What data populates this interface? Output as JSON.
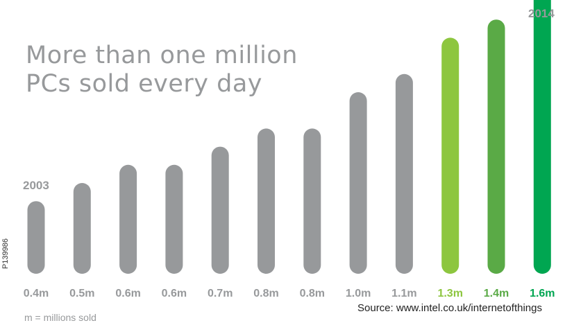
{
  "title_lines": [
    "More than one million",
    "PCs sold every day"
  ],
  "year_start": "2003",
  "year_end": "2014",
  "side_id": "P139986",
  "source": "Source: www.intel.co.uk/internetofthings",
  "note": "m = millions sold",
  "colors": {
    "gray": "#97999b",
    "light_green": "#8dc63f",
    "mid_green": "#5aaa46",
    "dark_green": "#00a651"
  },
  "chart_data": {
    "type": "bar",
    "unit": "m",
    "categories": [
      "0.4m",
      "0.5m",
      "0.6m",
      "0.6m",
      "0.7m",
      "0.8m",
      "0.8m",
      "1.0m",
      "1.1m",
      "1.3m",
      "1.4m",
      "1.6m"
    ],
    "values": [
      0.4,
      0.5,
      0.6,
      0.6,
      0.7,
      0.8,
      0.8,
      1.0,
      1.1,
      1.3,
      1.4,
      1.6
    ],
    "bar_colors": [
      "#97999b",
      "#97999b",
      "#97999b",
      "#97999b",
      "#97999b",
      "#97999b",
      "#97999b",
      "#97999b",
      "#97999b",
      "#8dc63f",
      "#5aaa46",
      "#00a651"
    ],
    "label_colors": [
      "#97999b",
      "#97999b",
      "#97999b",
      "#97999b",
      "#97999b",
      "#97999b",
      "#97999b",
      "#97999b",
      "#97999b",
      "#8dc63f",
      "#5aaa46",
      "#00a651"
    ],
    "annotations": [
      "2003",
      "2014"
    ],
    "grid": false,
    "legend": "none"
  }
}
